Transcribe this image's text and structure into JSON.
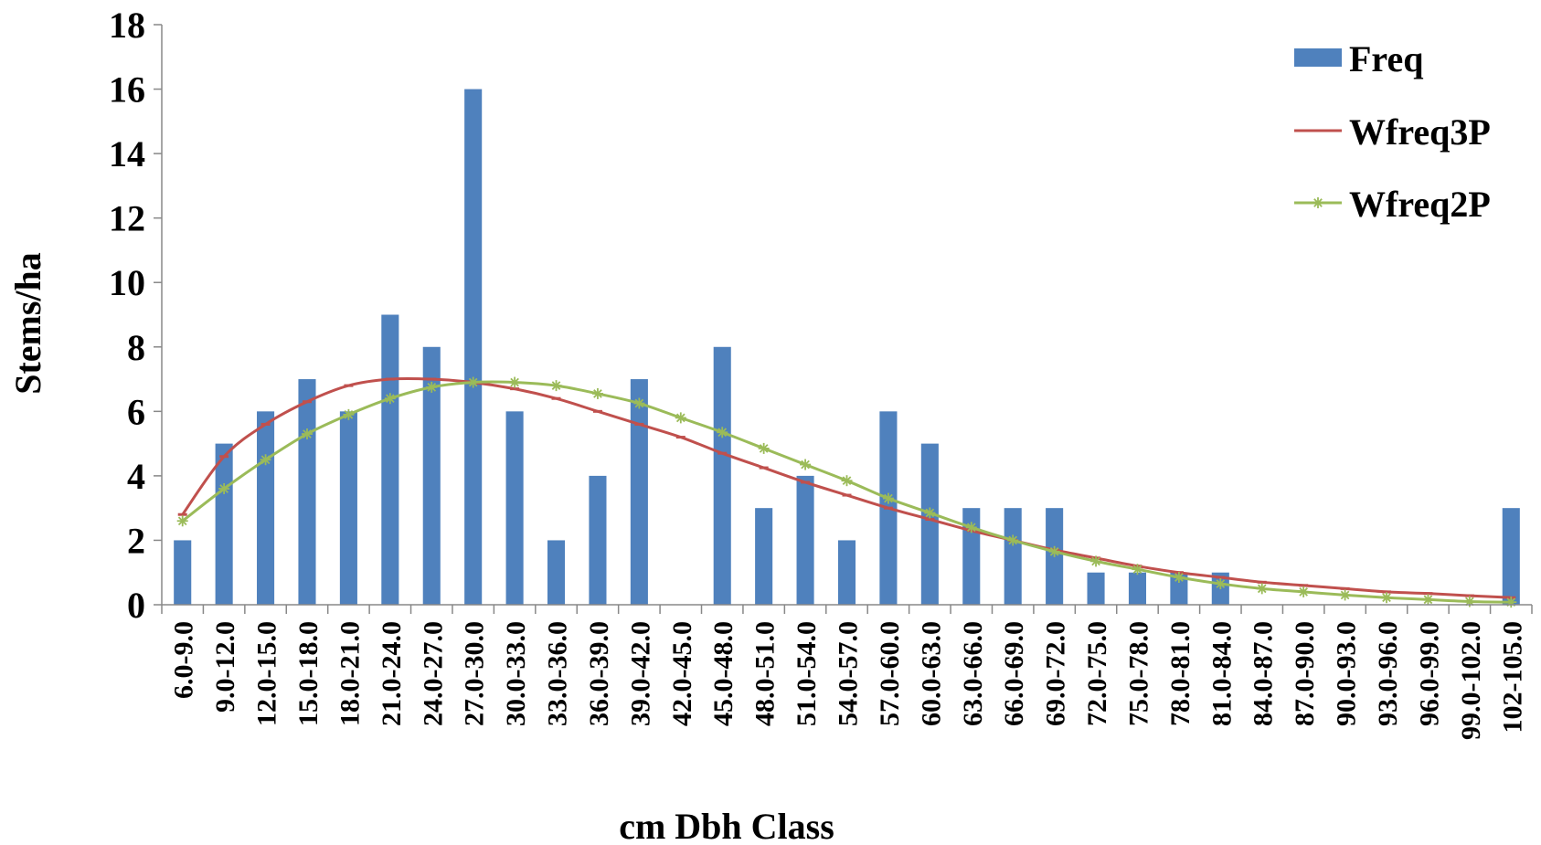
{
  "chart_data": {
    "type": "bar",
    "title": "",
    "xlabel": "cm Dbh Class",
    "ylabel": "Stems/ha",
    "ylim": [
      0,
      18
    ],
    "yticks": [
      0,
      2,
      4,
      6,
      8,
      10,
      12,
      14,
      16,
      18
    ],
    "grid": false,
    "legend_position": "top-right",
    "categories": [
      "6.0-9.0",
      "9.0-12.0",
      "12.0-15.0",
      "15.0-18.0",
      "18.0-21.0",
      "21.0-24.0",
      "24.0-27.0",
      "27.0-30.0",
      "30.0-33.0",
      "33.0-36.0",
      "36.0-39.0",
      "39.0-42.0",
      "42.0-45.0",
      "45.0-48.0",
      "48.0-51.0",
      "51.0-54.0",
      "54.0-57.0",
      "57.0-60.0",
      "60.0-63.0",
      "63.0-66.0",
      "66.0-69.0",
      "69.0-72.0",
      "72.0-75.0",
      "75.0-78.0",
      "78.0-81.0",
      "81.0-84.0",
      "84.0-87.0",
      "87.0-90.0",
      "90.0-93.0",
      "93.0-96.0",
      "96.0-99.0",
      "99.0-102.0",
      "102-105.0"
    ],
    "series": [
      {
        "name": "Freq",
        "kind": "bar",
        "color": "#4F81BD",
        "values": [
          2,
          5,
          6,
          7,
          6,
          9,
          8,
          16,
          6,
          2,
          4,
          7,
          0,
          8,
          3,
          4,
          2,
          6,
          5,
          3,
          3,
          3,
          1,
          1,
          1,
          1,
          0,
          0,
          0,
          0,
          0,
          0,
          3
        ]
      },
      {
        "name": "Wfreq3P",
        "kind": "line",
        "marker": "dash",
        "color": "#C0504D",
        "values": [
          2.8,
          4.6,
          5.6,
          6.3,
          6.8,
          7.0,
          7.0,
          6.9,
          6.7,
          6.4,
          6.0,
          5.6,
          5.2,
          4.7,
          4.25,
          3.8,
          3.4,
          3.0,
          2.65,
          2.3,
          2.0,
          1.7,
          1.45,
          1.2,
          1.0,
          0.85,
          0.7,
          0.6,
          0.5,
          0.4,
          0.35,
          0.28,
          0.22
        ]
      },
      {
        "name": "Wfreq2P",
        "kind": "line",
        "marker": "star",
        "color": "#9BBB59",
        "values": [
          2.6,
          3.6,
          4.5,
          5.3,
          5.9,
          6.4,
          6.75,
          6.9,
          6.9,
          6.8,
          6.55,
          6.25,
          5.8,
          5.35,
          4.85,
          4.35,
          3.85,
          3.3,
          2.85,
          2.4,
          2.0,
          1.65,
          1.35,
          1.1,
          0.85,
          0.65,
          0.5,
          0.4,
          0.3,
          0.22,
          0.16,
          0.1,
          0.08
        ]
      }
    ]
  }
}
